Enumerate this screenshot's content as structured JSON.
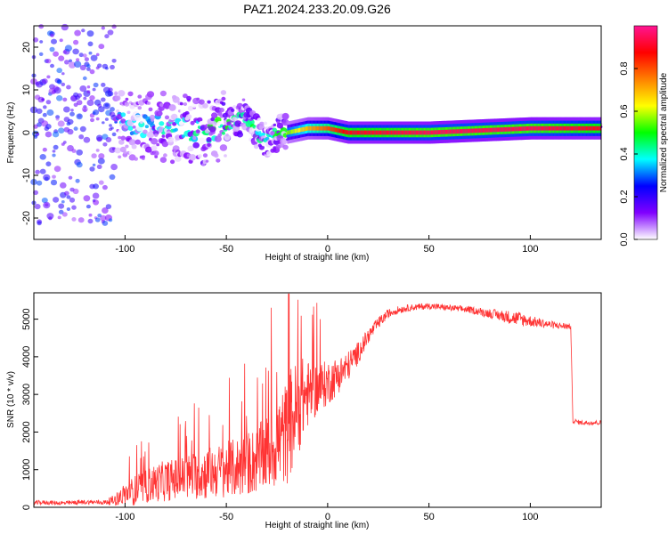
{
  "title": "PAZ1.2024.233.20.09.G26",
  "chart_data": [
    {
      "type": "heatmap",
      "xlabel": "Height of straight line (km)",
      "ylabel": "Frequency (Hz)",
      "xlim": [
        -145,
        135
      ],
      "ylim": [
        -25,
        25
      ],
      "xticks": [
        -100,
        -50,
        0,
        50,
        100
      ],
      "yticks": [
        -20,
        -10,
        0,
        10,
        20
      ],
      "colorbar": {
        "label": "Normalized spectral amplitude",
        "range": [
          0,
          1
        ],
        "ticks": [
          0.0,
          0.2,
          0.4,
          0.6,
          0.8
        ],
        "tick_labels": [
          "0.0",
          "0.2",
          "0.4",
          "0.6",
          "0.8"
        ],
        "colormap": [
          "#ffffff",
          "#8000ff",
          "#0000ff",
          "#00ffff",
          "#00ff00",
          "#ffff00",
          "#ff8000",
          "#ff0000",
          "#ff1493"
        ]
      },
      "ridge": {
        "description_points_x": [
          -145,
          -120,
          -100,
          -75,
          -60,
          -50,
          -40,
          -35,
          -30,
          -25,
          -20,
          -10,
          0,
          10,
          50,
          100,
          135
        ],
        "frequency_hz": [
          3,
          4,
          2,
          1,
          0,
          2,
          4,
          0,
          -2,
          0,
          0,
          1,
          1,
          0,
          0,
          1,
          1
        ],
        "peak_amplitude": [
          0.15,
          0.2,
          0.35,
          0.4,
          0.45,
          0.5,
          0.45,
          0.45,
          0.4,
          0.45,
          0.55,
          0.7,
          0.8,
          0.9,
          0.95,
          0.95,
          0.9
        ]
      }
    },
    {
      "type": "line",
      "xlabel": "Height of straight line (km)",
      "ylabel": "SNR (10 * v/v)",
      "xlim": [
        -145,
        135
      ],
      "ylim": [
        0,
        5700
      ],
      "xticks": [
        -100,
        -50,
        0,
        50,
        100
      ],
      "yticks": [
        0,
        1000,
        2000,
        3000,
        4000,
        5000
      ],
      "color": "#ff3333",
      "series": [
        {
          "x": [
            -145,
            -140,
            -130,
            -120,
            -110,
            -105,
            -100,
            -95,
            -90,
            -85,
            -80,
            -75,
            -70,
            -65,
            -60,
            -55,
            -50,
            -45,
            -40,
            -35,
            -30,
            -25,
            -20,
            -18,
            -15,
            -12,
            -10,
            -5,
            0,
            5,
            10,
            15,
            20,
            25,
            30,
            35,
            40,
            50,
            60,
            70,
            80,
            90,
            95,
            100,
            110,
            120,
            121,
            125,
            130,
            135
          ],
          "y": [
            120,
            130,
            110,
            140,
            130,
            200,
            350,
            450,
            550,
            650,
            700,
            750,
            800,
            850,
            900,
            950,
            1000,
            1050,
            1150,
            1250,
            1450,
            1700,
            2000,
            2300,
            2600,
            2900,
            3000,
            3150,
            3300,
            3500,
            3750,
            4100,
            4550,
            4900,
            5150,
            5250,
            5300,
            5350,
            5300,
            5250,
            5150,
            5050,
            5000,
            4950,
            4850,
            4800,
            2300,
            2250,
            2250,
            2250
          ],
          "noise": [
            60,
            60,
            60,
            60,
            60,
            150,
            300,
            400,
            450,
            500,
            550,
            550,
            600,
            650,
            700,
            700,
            750,
            800,
            850,
            900,
            1000,
            1200,
            1400,
            1500,
            1300,
            1100,
            900,
            700,
            600,
            500,
            400,
            300,
            200,
            150,
            120,
            100,
            90,
            80,
            80,
            90,
            120,
            180,
            200,
            150,
            100,
            80,
            60,
            60,
            60,
            60
          ]
        }
      ]
    }
  ]
}
